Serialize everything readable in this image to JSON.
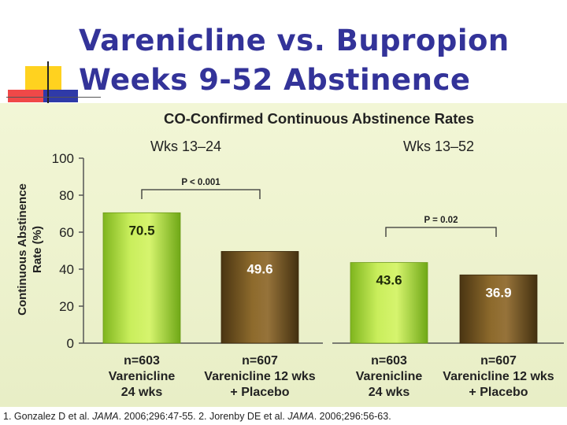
{
  "slide": {
    "title_line1": "Varenicline vs. Bupropion",
    "title_line2": "Weeks 9-52 Abstinence",
    "colors": {
      "title": "#333399",
      "deco_yellow": "#ffd21f",
      "deco_red": "#f04848",
      "deco_blue": "#2f3aa8"
    }
  },
  "chart_data": {
    "type": "bar",
    "title": "CO-Confirmed Continuous Abstinence Rates",
    "ylabel_line1": "Continuous Abstinence",
    "ylabel_line2": "Rate (%)",
    "ylim": [
      0,
      100
    ],
    "yticks": [
      "0",
      "20",
      "40",
      "60",
      "80",
      "100"
    ],
    "groups": [
      {
        "label": "Wks 13–24",
        "p_value": "P < 0.001",
        "bars": [
          {
            "n": "n=603",
            "line1": "Varenicline",
            "line2": "24 wks",
            "value": 70.5,
            "label": "70.5",
            "color": "green"
          },
          {
            "n": "n=607",
            "line1": "Varenicline 12 wks",
            "line2": "+ Placebo",
            "value": 49.6,
            "label": "49.6",
            "color": "brown"
          }
        ]
      },
      {
        "label": "Wks 13–52",
        "p_value": "P = 0.02",
        "bars": [
          {
            "n": "n=603",
            "line1": "Varenicline",
            "line2": "24 wks",
            "value": 43.6,
            "label": "43.6",
            "color": "green"
          },
          {
            "n": "n=607",
            "line1": "Varenicline 12 wks",
            "line2": "+ Placebo",
            "value": 36.9,
            "label": "36.9",
            "color": "brown"
          }
        ]
      }
    ]
  },
  "footnote": {
    "ref1_prefix": "1. Gonzalez D et al. ",
    "ref1_journal": "JAMA",
    "ref1_suffix": ". 2006;296:47-55.  2. Jorenby DE et al. ",
    "ref2_journal": "JAMA",
    "ref2_suffix": ". 2006;296:56-63."
  }
}
